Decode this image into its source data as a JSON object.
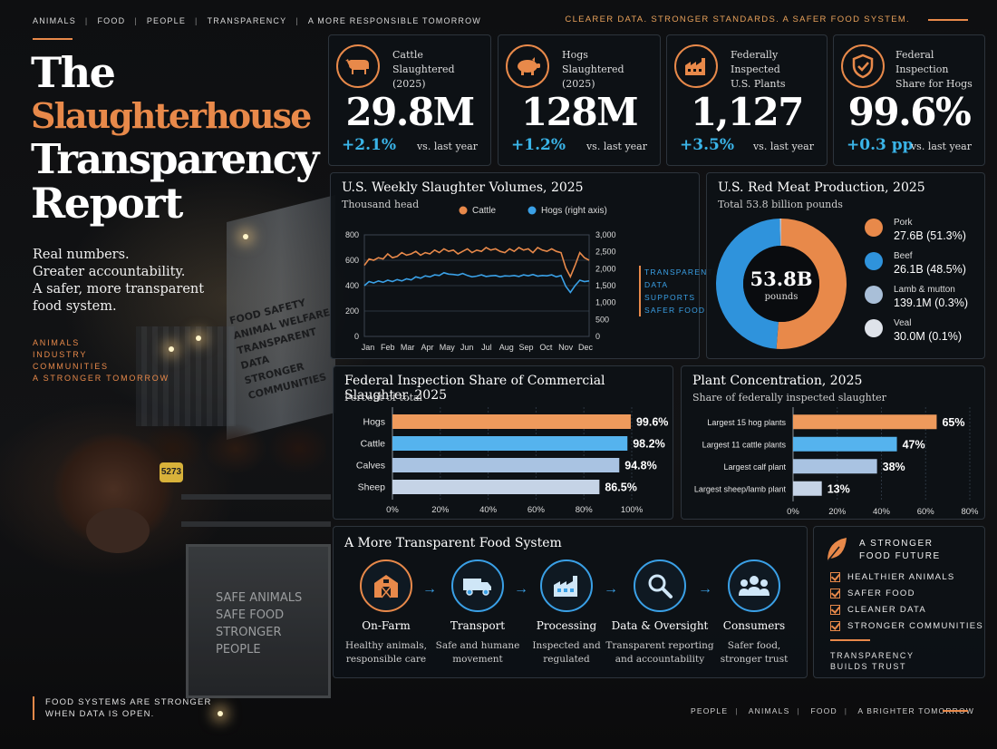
{
  "top_nav": [
    "ANIMALS",
    "FOOD",
    "PEOPLE",
    "TRANSPARENCY",
    "A MORE RESPONSIBLE TOMORROW"
  ],
  "tagline": "CLEARER DATA. STRONGER STANDARDS. A SAFER FOOD SYSTEM.",
  "title": {
    "line1": "The",
    "line2": "Slaughterhouse",
    "line3": "Transparency",
    "line4": "Report"
  },
  "intro": [
    "Real numbers.",
    "Greater accountability.",
    "A safer, more transparent",
    "food system."
  ],
  "tags": [
    "ANIMALS",
    "INDUSTRY",
    "COMMUNITIES",
    "A STRONGER TOMORROW"
  ],
  "photo": {
    "wall_text": [
      "FOOD SAFETY",
      "ANIMAL WELFARE",
      "TRANSPARENT DATA",
      "STRONGER COMMUNITIES"
    ],
    "gate_text": [
      "SAFE ANIMALS",
      "SAFE FOOD",
      "STRONGER PEOPLE"
    ],
    "ear_tag": "5273"
  },
  "kpis": [
    {
      "label": "Cattle\nSlaughtered (2025)",
      "value": "29.8M",
      "delta": "+2.1%",
      "vs": "vs. last year",
      "icon": "cow-icon"
    },
    {
      "label": "Hogs\nSlaughtered (2025)",
      "value": "128M",
      "delta": "+1.2%",
      "vs": "vs. last year",
      "icon": "pig-icon"
    },
    {
      "label": "Federally Inspected\nU.S. Plants",
      "value": "1,127",
      "delta": "+3.5%",
      "vs": "vs. last year",
      "icon": "factory-icon"
    },
    {
      "label": "Federal Inspection\nShare for Hogs",
      "value": "99.6%",
      "delta": "+0.3 pp",
      "vs": "vs. last year",
      "icon": "shield-check-icon"
    }
  ],
  "chart_data": [
    {
      "type": "line",
      "title": "U.S. Weekly Slaughter Volumes, 2025",
      "subtitle": "Thousand head",
      "x_ticks": [
        "Jan",
        "Feb",
        "Mar",
        "Apr",
        "May",
        "Jun",
        "Jul",
        "Aug",
        "Sep",
        "Oct",
        "Nov",
        "Dec"
      ],
      "y_left": {
        "ticks": [
          0,
          200,
          400,
          600,
          800
        ],
        "lim": [
          0,
          800
        ]
      },
      "y_right": {
        "ticks": [
          "0",
          "500",
          "1,000",
          "1,500",
          "2,000",
          "2,500",
          "3,000"
        ],
        "lim": [
          0,
          3000
        ]
      },
      "side_note": [
        "TRANSPARENT",
        "DATA",
        "SUPPORTS",
        "SAFER FOOD"
      ],
      "series": [
        {
          "name": "Cattle",
          "axis": "left",
          "color": "#e8894a",
          "values": [
            560,
            610,
            600,
            620,
            610,
            650,
            620,
            630,
            660,
            640,
            650,
            670,
            640,
            660,
            650,
            680,
            660,
            690,
            670,
            680,
            650,
            670,
            690,
            660,
            680,
            670,
            700,
            680,
            690,
            670,
            660,
            690,
            670,
            700,
            680,
            690,
            660,
            700,
            680,
            670,
            690,
            670,
            660,
            540,
            470,
            560,
            660,
            620,
            600
          ]
        },
        {
          "name": "Hogs (right axis)",
          "axis": "right",
          "color": "#3aa0e6",
          "values": [
            1500,
            1620,
            1580,
            1640,
            1600,
            1660,
            1620,
            1680,
            1640,
            1700,
            1670,
            1760,
            1720,
            1790,
            1760,
            1820,
            1800,
            1880,
            1840,
            1830,
            1810,
            1860,
            1800,
            1760,
            1780,
            1820,
            1770,
            1790,
            1800,
            1760,
            1790,
            1780,
            1800,
            1770,
            1820,
            1790,
            1830,
            1780,
            1800,
            1790,
            1820,
            1760,
            1800,
            1480,
            1300,
            1500,
            1660,
            1620,
            1640
          ]
        }
      ]
    },
    {
      "type": "pie",
      "title": "U.S. Red Meat Production, 2025",
      "subtitle": "Total 53.8 billion pounds",
      "center_value": "53.8B",
      "center_label": "pounds",
      "slices": [
        {
          "label": "Pork",
          "value_label": "27.6B (51.3%)",
          "value": 51.3,
          "color": "#e8894a"
        },
        {
          "label": "Beef",
          "value_label": "26.1B (48.5%)",
          "value": 48.5,
          "color": "#2f93dc"
        },
        {
          "label": "Lamb & mutton",
          "value_label": "139.1M (0.3%)",
          "value": 0.3,
          "color": "#a9bfd8"
        },
        {
          "label": "Veal",
          "value_label": "30.0M (0.1%)",
          "value": 0.1,
          "color": "#dfe3ea"
        }
      ]
    },
    {
      "type": "bar",
      "title": "Federal Inspection Share of Commercial Slaughter, 2025",
      "subtitle": "Percent of total",
      "categories": [
        "Hogs",
        "Cattle",
        "Calves",
        "Sheep"
      ],
      "values": [
        99.6,
        98.2,
        94.8,
        86.5
      ],
      "labels": [
        "99.6%",
        "98.2%",
        "94.8%",
        "86.5%"
      ],
      "colors": [
        "#ee9a5c",
        "#55b3ee",
        "#a9c3e2",
        "#c5d3e6"
      ],
      "x_ticks": [
        "0%",
        "20%",
        "40%",
        "60%",
        "80%",
        "100%"
      ],
      "xlim": [
        0,
        100
      ]
    },
    {
      "type": "bar",
      "title": "Plant Concentration, 2025",
      "subtitle": "Share of federally inspected slaughter",
      "categories": [
        "Largest 15 hog plants",
        "Largest 11 cattle plants",
        "Largest calf plant",
        "Largest sheep/lamb plant"
      ],
      "values": [
        65,
        47,
        38,
        13
      ],
      "labels": [
        "65%",
        "47%",
        "38%",
        "13%"
      ],
      "colors": [
        "#ee9a5c",
        "#55b3ee",
        "#a9c3e2",
        "#c5d3e6"
      ],
      "x_ticks": [
        "0%",
        "20%",
        "40%",
        "60%",
        "80%"
      ],
      "xlim": [
        0,
        80
      ]
    }
  ],
  "flow": {
    "title": "A More Transparent Food System",
    "steps": [
      {
        "name": "On-Farm",
        "desc": "Healthy animals,\nresponsible care",
        "icon": "barn-icon"
      },
      {
        "name": "Transport",
        "desc": "Safe and humane\nmovement",
        "icon": "truck-icon"
      },
      {
        "name": "Processing",
        "desc": "Inspected and\nregulated",
        "icon": "factory-icon"
      },
      {
        "name": "Data & Oversight",
        "desc": "Transparent reporting\nand accountability",
        "icon": "magnifier-icon"
      },
      {
        "name": "Consumers",
        "desc": "Safer food,\nstronger trust",
        "icon": "people-icon"
      }
    ]
  },
  "future": {
    "title": "A STRONGER\nFOOD FUTURE",
    "items": [
      "HEALTHIER ANIMALS",
      "SAFER FOOD",
      "CLEANER DATA",
      "STRONGER COMMUNITIES"
    ],
    "footer": "TRANSPARENCY\nBUILDS TRUST"
  },
  "footer_left": "FOOD SYSTEMS ARE STRONGER\nWHEN DATA IS OPEN.",
  "footer_right": [
    "PEOPLE",
    "ANIMALS",
    "FOOD",
    "A BRIGHTER TOMORROW"
  ]
}
